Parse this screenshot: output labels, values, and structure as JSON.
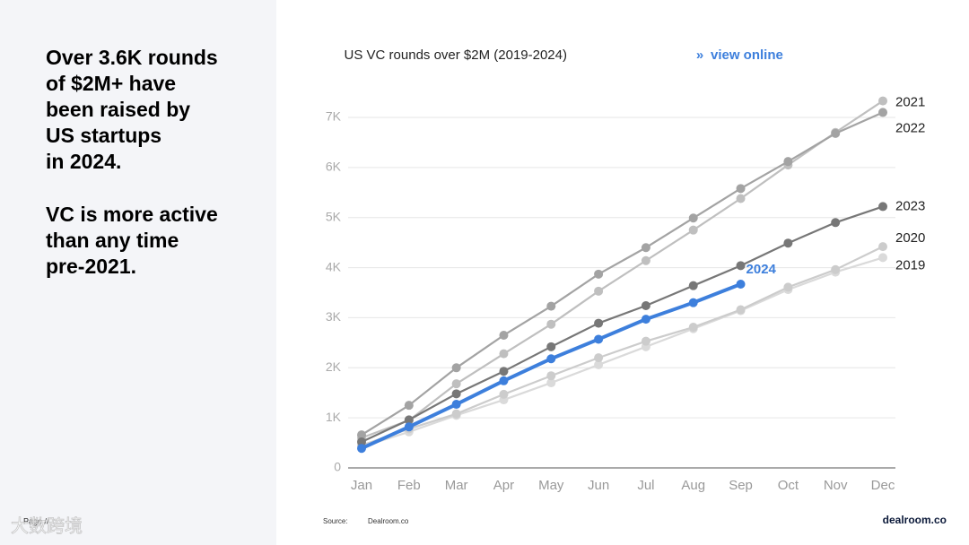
{
  "headline": {
    "lines": [
      "Over 3.6K rounds",
      "of $2M+ have",
      "been raised by",
      "US startups",
      "in 2024."
    ]
  },
  "subhead": {
    "lines": [
      "VC is more active",
      "than any time",
      "pre-2021."
    ]
  },
  "footer": {
    "page": "Page //",
    "source_label": "Source:",
    "source": "Dealroom.co",
    "logo": "dealroom.co",
    "watermark": "大数跨境"
  },
  "chart_data": {
    "type": "line",
    "title": "US VC rounds over $2M (2019-2024)",
    "link_separator": "»",
    "link": "view online",
    "categories": [
      "Jan",
      "Feb",
      "Mar",
      "Apr",
      "May",
      "Jun",
      "Jul",
      "Aug",
      "Sep",
      "Oct",
      "Nov",
      "Dec"
    ],
    "ylim": [
      0,
      7000
    ],
    "yticks": [
      0,
      {
        "value": 1000,
        "label": "1K"
      },
      {
        "value": 2000,
        "label": "2K"
      },
      {
        "value": 3000,
        "label": "3K"
      },
      {
        "value": 4000,
        "label": "4K"
      },
      {
        "value": 5000,
        "label": "5K"
      },
      {
        "value": 6000,
        "label": "6K"
      },
      {
        "value": 7000,
        "label": "7K"
      }
    ],
    "grid": true,
    "series": [
      {
        "name": "2019",
        "color": "#dadada",
        "values": [
          420,
          720,
          1050,
          1360,
          1700,
          2060,
          2420,
          2780,
          3140,
          3560,
          3910,
          4200
        ]
      },
      {
        "name": "2020",
        "color": "#cccccc",
        "values": [
          450,
          780,
          1080,
          1470,
          1840,
          2200,
          2530,
          2810,
          3160,
          3610,
          3960,
          4420
        ]
      },
      {
        "name": "2021",
        "color": "#bfbfbf",
        "values": [
          600,
          950,
          1680,
          2280,
          2870,
          3530,
          4140,
          4750,
          5380,
          6050,
          6700,
          7330
        ]
      },
      {
        "name": "2022",
        "color": "#a3a3a3",
        "values": [
          660,
          1250,
          2000,
          2650,
          3230,
          3870,
          4400,
          4990,
          5580,
          6120,
          6680,
          7100
        ]
      },
      {
        "name": "2023",
        "color": "#777777",
        "values": [
          520,
          960,
          1480,
          1930,
          2420,
          2890,
          3240,
          3640,
          4040,
          4490,
          4900,
          5220
        ]
      },
      {
        "name": "2024",
        "color": "#3d7fdc",
        "values": [
          390,
          820,
          1270,
          1740,
          2180,
          2570,
          2970,
          3300,
          3670,
          null,
          null,
          null
        ]
      }
    ]
  }
}
